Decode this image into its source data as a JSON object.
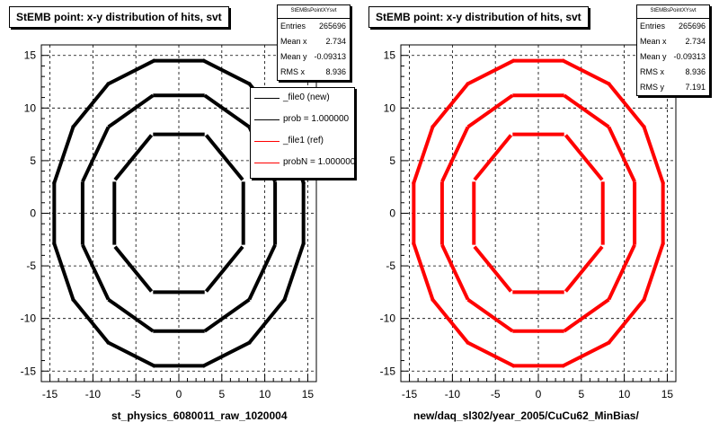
{
  "chart_data": [
    {
      "type": "scatter",
      "title": "StEMB point: x-y distribution of hits, svt",
      "xlabel": "st_physics_6080011_raw_1020004",
      "ylabel": "",
      "xlim": [
        -16,
        16
      ],
      "ylim": [
        -16,
        16
      ],
      "x_ticks": [
        -15,
        -10,
        -5,
        0,
        5,
        10,
        15
      ],
      "y_ticks": [
        -15,
        -10,
        -5,
        0,
        5,
        10,
        15
      ],
      "grid": true,
      "color": "#000000",
      "stats": {
        "name": "StEMBsPointXYsvt",
        "rows": [
          {
            "label": "Entries",
            "value": "265696"
          },
          {
            "label": "Mean x",
            "value": "2.734"
          },
          {
            "label": "Mean y",
            "value": "-0.09313"
          },
          {
            "label": "RMS x",
            "value": "8.936"
          }
        ]
      },
      "legend": {
        "placement": "top-right",
        "entries": [
          {
            "text": "_file0 (new)",
            "color": "#000000"
          },
          {
            "text": "prob = 1.000000",
            "color": "#000000"
          },
          {
            "text": "_file1 (ref)",
            "color": "#ff0000"
          },
          {
            "text": "probN = 1.000000",
            "color": "#ff0000"
          }
        ]
      },
      "series": [
        {
          "layer": 1,
          "radius": 7.5,
          "ladders": 8,
          "ladder_half_length": 3.0,
          "phase_deg": 0
        },
        {
          "layer": 2,
          "radius": 11.2,
          "ladders": 12,
          "ladder_half_length": 3.0,
          "phase_deg": 0
        },
        {
          "layer": 3,
          "radius": 14.5,
          "ladders": 16,
          "ladder_half_length": 3.0,
          "phase_deg": 0
        }
      ]
    },
    {
      "type": "scatter",
      "title": "StEMB point: x-y distribution of hits, svt",
      "xlabel": "new/daq_sl302/year_2005/CuCu62_MinBias/",
      "ylabel": "",
      "xlim": [
        -16,
        16
      ],
      "ylim": [
        -16,
        16
      ],
      "x_ticks": [
        -15,
        -10,
        -5,
        0,
        5,
        10,
        15
      ],
      "y_ticks": [
        -15,
        -10,
        -5,
        0,
        5,
        10,
        15
      ],
      "grid": true,
      "color": "#ff0000",
      "stats": {
        "name": "StEMBsPointXYsvt",
        "rows": [
          {
            "label": "Entries",
            "value": "265696"
          },
          {
            "label": "Mean x",
            "value": "2.734"
          },
          {
            "label": "Mean y",
            "value": "-0.09313"
          },
          {
            "label": "RMS x",
            "value": "8.936"
          },
          {
            "label": "RMS y",
            "value": "7.191"
          }
        ]
      },
      "series": [
        {
          "layer": 1,
          "radius": 7.5,
          "ladders": 8,
          "ladder_half_length": 3.0,
          "phase_deg": 0
        },
        {
          "layer": 2,
          "radius": 11.2,
          "ladders": 12,
          "ladder_half_length": 3.0,
          "phase_deg": 0
        },
        {
          "layer": 3,
          "radius": 14.5,
          "ladders": 16,
          "ladder_half_length": 3.0,
          "phase_deg": 0
        }
      ]
    }
  ]
}
